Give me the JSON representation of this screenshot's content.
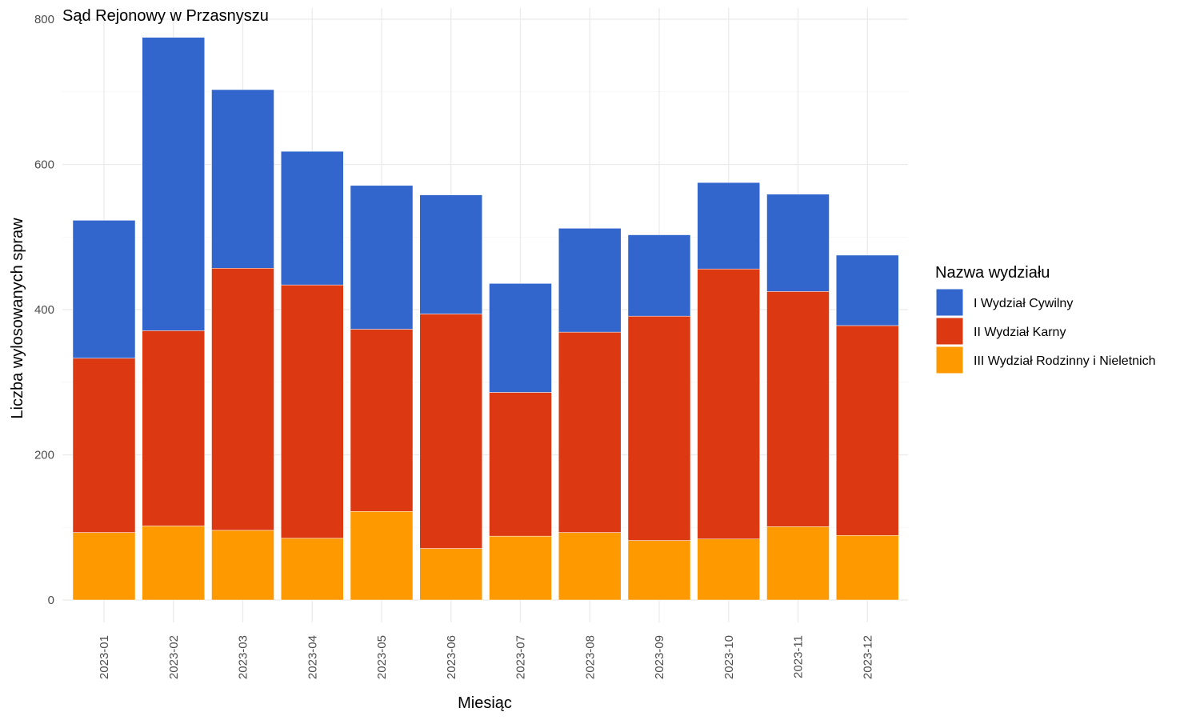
{
  "chart_data": {
    "type": "bar",
    "stacked": true,
    "title": "Sąd Rejonowy w Przasnyszu",
    "xlabel": "Miesiąc",
    "ylabel": "Liczba wylosowanych spraw",
    "ylim": [
      0,
      800
    ],
    "yticks": [
      0,
      200,
      400,
      600,
      800
    ],
    "grid": true,
    "legend_title": "Nazwa wydziału",
    "legend_position": "right",
    "categories": [
      "2023-01",
      "2023-02",
      "2023-03",
      "2023-04",
      "2023-05",
      "2023-06",
      "2023-07",
      "2023-08",
      "2023-09",
      "2023-10",
      "2023-11",
      "2023-12"
    ],
    "series": [
      {
        "name": "III Wydział Rodzinny i Nieletnich",
        "color": "#FF9900",
        "values": [
          93,
          102,
          96,
          85,
          122,
          71,
          88,
          93,
          82,
          84,
          101,
          89
        ]
      },
      {
        "name": "II Wydział Karny",
        "color": "#DC3912",
        "values": [
          240,
          269,
          361,
          349,
          251,
          323,
          198,
          276,
          309,
          372,
          324,
          289
        ]
      },
      {
        "name": "I Wydział Cywilny",
        "color": "#3366CC",
        "values": [
          190,
          404,
          246,
          184,
          198,
          164,
          150,
          143,
          112,
          119,
          134,
          97
        ]
      }
    ],
    "legend_order": [
      "I Wydział Cywilny",
      "II Wydział Karny",
      "III Wydział Rodzinny i Nieletnich"
    ]
  }
}
